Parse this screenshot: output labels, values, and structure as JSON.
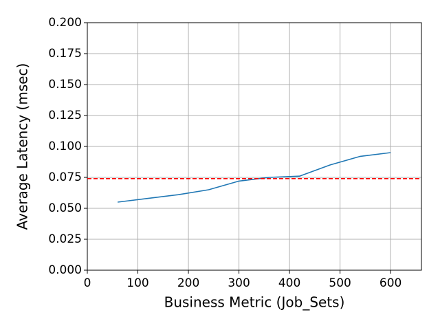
{
  "chart_data": {
    "type": "line",
    "xlabel": "Business Metric (Job_Sets)",
    "ylabel": "Average Latency (msec)",
    "x": [
      60,
      120,
      180,
      240,
      300,
      360,
      420,
      480,
      540,
      600
    ],
    "series": [
      {
        "color": "#1f77b4",
        "values": [
          0.055,
          0.058,
          0.061,
          0.065,
          0.072,
          0.075,
          0.076,
          0.085,
          0.092,
          0.095
        ]
      }
    ],
    "hline": {
      "value": 0.074,
      "color": "#ff0000"
    },
    "xlim": [
      0,
      661
    ],
    "xticks": [
      0,
      100,
      200,
      300,
      400,
      500,
      600
    ],
    "ylim": [
      0,
      0.2
    ],
    "yticks": [
      {
        "value": 0,
        "label": "0.000"
      },
      {
        "value": 0.025,
        "label": "0.025"
      },
      {
        "value": 0.05,
        "label": "0.050"
      },
      {
        "value": 0.075,
        "label": "0.075"
      },
      {
        "value": 0.1,
        "label": "0.100"
      },
      {
        "value": 0.125,
        "label": "0.125"
      },
      {
        "value": 0.15,
        "label": "0.150"
      },
      {
        "value": 0.175,
        "label": "0.175"
      },
      {
        "value": 0.2,
        "label": "0.200"
      }
    ],
    "grid": true
  }
}
